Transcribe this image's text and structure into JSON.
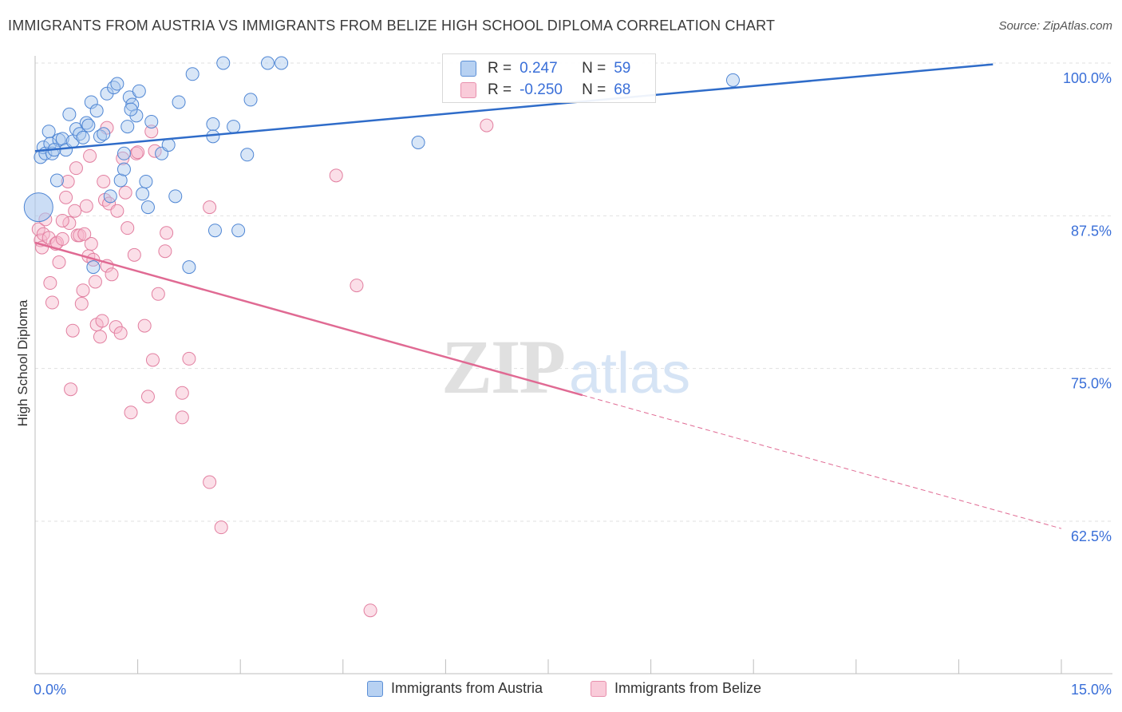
{
  "title": "IMMIGRANTS FROM AUSTRIA VS IMMIGRANTS FROM BELIZE HIGH SCHOOL DIPLOMA CORRELATION CHART",
  "source": "Source: ZipAtlas.com",
  "watermark": {
    "zip": "ZIP",
    "atlas": "atlas"
  },
  "colors": {
    "austria_fill": "#a9c7ee",
    "austria_stroke": "#4f86d4",
    "austria_line": "#2f6cc9",
    "belize_fill": "#f6b9cc",
    "belize_stroke": "#e27fa0",
    "belize_line": "#e06a93",
    "axis_label": "#3a6fd8",
    "grid": "#e1e1e1"
  },
  "stats": {
    "austria": {
      "r_label": "R =",
      "r_value": "0.247",
      "n_label": "N =",
      "n_value": "59"
    },
    "belize": {
      "r_label": "R =",
      "r_value": "-0.250",
      "n_label": "N =",
      "n_value": "68"
    }
  },
  "legend": {
    "austria": "Immigrants from Austria",
    "belize": "Immigrants from Belize"
  },
  "chart_data": {
    "type": "scatter",
    "title": "IMMIGRANTS FROM AUSTRIA VS IMMIGRANTS FROM BELIZE HIGH SCHOOL DIPLOMA CORRELATION CHART",
    "xlabel": "",
    "ylabel": "High School Diploma",
    "xlim": [
      0,
      15
    ],
    "ylim": [
      52.5,
      101.5
    ],
    "x_tick_labels": [
      "0.0%",
      "15.0%"
    ],
    "y_ticks": [
      100,
      87.5,
      75,
      62.5
    ],
    "y_tick_labels": [
      "100.0%",
      "87.5%",
      "75.0%",
      "62.5%"
    ],
    "grid": true,
    "legend_position": "bottom",
    "series": [
      {
        "name": "Immigrants from Austria",
        "r": 0.247,
        "n": 59,
        "trend": {
          "x0": 0,
          "y0": 92.8,
          "x1": 15,
          "y1": 100.4
        },
        "points": [
          [
            0.05,
            88.2
          ],
          [
            0.08,
            92.3
          ],
          [
            0.12,
            93.1
          ],
          [
            0.15,
            92.6
          ],
          [
            0.2,
            94.4
          ],
          [
            0.22,
            93.4
          ],
          [
            0.25,
            92.6
          ],
          [
            0.32,
            90.4
          ],
          [
            0.35,
            93.7
          ],
          [
            0.4,
            93.8
          ],
          [
            0.45,
            92.9
          ],
          [
            0.5,
            95.8
          ],
          [
            0.55,
            93.6
          ],
          [
            0.6,
            94.6
          ],
          [
            0.65,
            94.2
          ],
          [
            0.7,
            93.9
          ],
          [
            0.75,
            95.1
          ],
          [
            0.78,
            94.9
          ],
          [
            0.82,
            96.8
          ],
          [
            0.9,
            96.1
          ],
          [
            0.95,
            94.0
          ],
          [
            1.0,
            94.2
          ],
          [
            1.05,
            97.5
          ],
          [
            1.1,
            89.1
          ],
          [
            1.15,
            98.0
          ],
          [
            1.2,
            98.3
          ],
          [
            1.25,
            90.4
          ],
          [
            1.3,
            91.3
          ],
          [
            1.35,
            94.8
          ],
          [
            1.38,
            97.2
          ],
          [
            1.42,
            96.6
          ],
          [
            1.48,
            95.7
          ],
          [
            1.52,
            97.7
          ],
          [
            1.57,
            89.3
          ],
          [
            1.62,
            90.3
          ],
          [
            1.65,
            88.2
          ],
          [
            1.7,
            95.2
          ],
          [
            1.85,
            92.6
          ],
          [
            1.95,
            93.3
          ],
          [
            2.05,
            89.1
          ],
          [
            2.1,
            96.8
          ],
          [
            2.3,
            99.1
          ],
          [
            2.6,
            95.0
          ],
          [
            2.6,
            94.0
          ],
          [
            2.63,
            86.3
          ],
          [
            2.75,
            100.0
          ],
          [
            2.9,
            94.8
          ],
          [
            2.97,
            86.3
          ],
          [
            3.1,
            92.5
          ],
          [
            3.15,
            97.0
          ],
          [
            3.4,
            100.0
          ],
          [
            3.6,
            100.0
          ],
          [
            1.3,
            92.6
          ],
          [
            1.4,
            96.2
          ],
          [
            2.25,
            83.3
          ],
          [
            0.85,
            83.3
          ],
          [
            5.6,
            93.5
          ],
          [
            10.2,
            98.6
          ],
          [
            0.28,
            92.9
          ]
        ]
      },
      {
        "name": "Immigrants from Belize",
        "r": -0.25,
        "n": 68,
        "trend": {
          "x0": 0,
          "y0": 85.3,
          "x1": 15,
          "y1": 61.9,
          "solid_until_x": 8.0
        },
        "points": [
          [
            0.05,
            86.4
          ],
          [
            0.08,
            85.5
          ],
          [
            0.1,
            84.9
          ],
          [
            0.12,
            86.0
          ],
          [
            0.15,
            87.2
          ],
          [
            0.2,
            85.7
          ],
          [
            0.22,
            82.0
          ],
          [
            0.25,
            80.4
          ],
          [
            0.3,
            85.2
          ],
          [
            0.32,
            85.3
          ],
          [
            0.35,
            83.7
          ],
          [
            0.4,
            85.6
          ],
          [
            0.45,
            89.0
          ],
          [
            0.48,
            90.3
          ],
          [
            0.5,
            86.9
          ],
          [
            0.52,
            73.3
          ],
          [
            0.55,
            78.1
          ],
          [
            0.58,
            87.9
          ],
          [
            0.6,
            91.4
          ],
          [
            0.62,
            85.9
          ],
          [
            0.65,
            85.9
          ],
          [
            0.68,
            80.3
          ],
          [
            0.7,
            81.4
          ],
          [
            0.72,
            86.0
          ],
          [
            0.75,
            88.3
          ],
          [
            0.78,
            84.2
          ],
          [
            0.8,
            92.4
          ],
          [
            0.82,
            85.2
          ],
          [
            0.85,
            83.9
          ],
          [
            0.88,
            82.1
          ],
          [
            0.9,
            78.6
          ],
          [
            0.95,
            77.6
          ],
          [
            0.98,
            78.9
          ],
          [
            1.0,
            90.3
          ],
          [
            1.02,
            88.8
          ],
          [
            1.05,
            83.4
          ],
          [
            1.08,
            88.5
          ],
          [
            1.12,
            82.7
          ],
          [
            1.18,
            78.4
          ],
          [
            1.2,
            87.9
          ],
          [
            1.25,
            77.9
          ],
          [
            1.28,
            92.2
          ],
          [
            1.32,
            89.4
          ],
          [
            1.35,
            86.5
          ],
          [
            1.4,
            71.4
          ],
          [
            1.45,
            84.3
          ],
          [
            1.48,
            92.6
          ],
          [
            1.5,
            92.7
          ],
          [
            1.6,
            78.5
          ],
          [
            1.65,
            72.7
          ],
          [
            1.7,
            94.4
          ],
          [
            1.72,
            75.7
          ],
          [
            1.75,
            92.8
          ],
          [
            1.8,
            81.1
          ],
          [
            1.9,
            84.6
          ],
          [
            1.92,
            86.1
          ],
          [
            2.15,
            73.0
          ],
          [
            2.15,
            71.0
          ],
          [
            2.25,
            75.8
          ],
          [
            2.55,
            65.7
          ],
          [
            2.55,
            88.2
          ],
          [
            2.72,
            62.0
          ],
          [
            4.4,
            90.8
          ],
          [
            4.7,
            81.8
          ],
          [
            4.9,
            55.2
          ],
          [
            6.6,
            94.9
          ],
          [
            1.05,
            94.7
          ],
          [
            0.4,
            87.1
          ]
        ]
      }
    ]
  }
}
